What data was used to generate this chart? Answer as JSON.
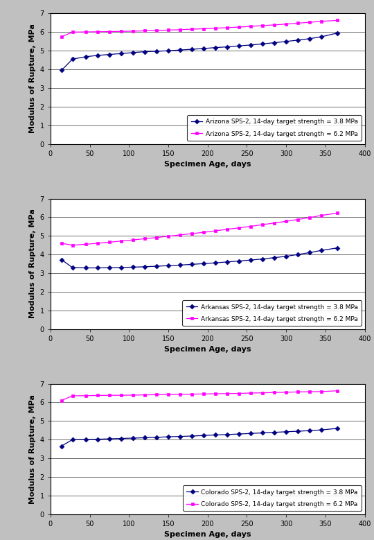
{
  "background_color": "#c0c0c0",
  "panel_bg": "#ffffff",
  "plots": [
    {
      "legend_loc": "lower right",
      "series": [
        {
          "label": "Arizona SPS-2, 14-day target strength = 3.8 MPa",
          "x": [
            14,
            28,
            45,
            60,
            75,
            90,
            105,
            120,
            135,
            150,
            165,
            180,
            195,
            210,
            225,
            240,
            255,
            270,
            285,
            300,
            315,
            330,
            345,
            365
          ],
          "y": [
            3.95,
            4.55,
            4.68,
            4.75,
            4.8,
            4.85,
            4.9,
            4.95,
            4.97,
            5.0,
            5.04,
            5.08,
            5.12,
            5.17,
            5.21,
            5.26,
            5.31,
            5.37,
            5.43,
            5.5,
            5.57,
            5.65,
            5.75,
            5.95
          ],
          "color": "#000080",
          "marker": "D"
        },
        {
          "label": "Arizona SPS-2, 14-day target strength = 6.2 MPa",
          "x": [
            14,
            28,
            45,
            60,
            75,
            90,
            105,
            120,
            135,
            150,
            165,
            180,
            195,
            210,
            225,
            240,
            255,
            270,
            285,
            300,
            315,
            330,
            345,
            365
          ],
          "y": [
            5.75,
            6.0,
            6.01,
            6.02,
            6.03,
            6.04,
            6.05,
            6.07,
            6.09,
            6.11,
            6.13,
            6.16,
            6.18,
            6.21,
            6.24,
            6.27,
            6.31,
            6.35,
            6.39,
            6.43,
            6.48,
            6.53,
            6.58,
            6.63
          ],
          "color": "#ff00ff",
          "marker": "s"
        }
      ]
    },
    {
      "legend_loc": "lower right",
      "series": [
        {
          "label": "Arkansas SPS-2, 14-day target strength = 3.8 MPa",
          "x": [
            14,
            28,
            45,
            60,
            75,
            90,
            105,
            120,
            135,
            150,
            165,
            180,
            195,
            210,
            225,
            240,
            255,
            270,
            285,
            300,
            315,
            330,
            345,
            365
          ],
          "y": [
            3.72,
            3.3,
            3.28,
            3.28,
            3.29,
            3.3,
            3.32,
            3.34,
            3.37,
            3.4,
            3.43,
            3.47,
            3.51,
            3.55,
            3.6,
            3.65,
            3.7,
            3.76,
            3.83,
            3.9,
            4.0,
            4.1,
            4.22,
            4.35
          ],
          "color": "#000080",
          "marker": "D"
        },
        {
          "label": "Arkansas SPS-2, 14-day target strength = 6.2 MPa",
          "x": [
            14,
            28,
            45,
            60,
            75,
            90,
            105,
            120,
            135,
            150,
            165,
            180,
            195,
            210,
            225,
            240,
            255,
            270,
            285,
            300,
            315,
            330,
            345,
            365
          ],
          "y": [
            4.6,
            4.5,
            4.55,
            4.6,
            4.66,
            4.72,
            4.78,
            4.85,
            4.91,
            4.98,
            5.05,
            5.12,
            5.19,
            5.27,
            5.35,
            5.43,
            5.51,
            5.6,
            5.69,
            5.78,
            5.88,
            5.98,
            6.1,
            6.22
          ],
          "color": "#ff00ff",
          "marker": "s"
        }
      ]
    },
    {
      "legend_loc": "lower right",
      "series": [
        {
          "label": "Colorado SPS-2, 14-day target strength = 3.8 MPa",
          "x": [
            14,
            28,
            45,
            60,
            75,
            90,
            105,
            120,
            135,
            150,
            165,
            180,
            195,
            210,
            225,
            240,
            255,
            270,
            285,
            300,
            315,
            330,
            345,
            365
          ],
          "y": [
            3.65,
            4.0,
            4.01,
            4.02,
            4.04,
            4.06,
            4.08,
            4.1,
            4.12,
            4.15,
            4.17,
            4.19,
            4.22,
            4.25,
            4.27,
            4.3,
            4.33,
            4.36,
            4.39,
            4.42,
            4.45,
            4.48,
            4.52,
            4.6
          ],
          "color": "#000080",
          "marker": "D"
        },
        {
          "label": "Colorado SPS-2, 14-day target strength = 6.2 MPa",
          "x": [
            14,
            28,
            45,
            60,
            75,
            90,
            105,
            120,
            135,
            150,
            165,
            180,
            195,
            210,
            225,
            240,
            255,
            270,
            285,
            300,
            315,
            330,
            345,
            365
          ],
          "y": [
            6.1,
            6.35,
            6.36,
            6.37,
            6.38,
            6.38,
            6.39,
            6.4,
            6.41,
            6.42,
            6.43,
            6.44,
            6.45,
            6.46,
            6.47,
            6.48,
            6.5,
            6.51,
            6.53,
            6.54,
            6.56,
            6.57,
            6.58,
            6.62
          ],
          "color": "#ff00ff",
          "marker": "s"
        }
      ]
    }
  ],
  "xlabel": "Specimen Age, days",
  "ylabel": "Modulus of Rupture, MPa",
  "xlim": [
    0,
    400
  ],
  "ylim": [
    0,
    7
  ],
  "xticks": [
    0,
    50,
    100,
    150,
    200,
    250,
    300,
    350,
    400
  ],
  "yticks": [
    0,
    1,
    2,
    3,
    4,
    5,
    6,
    7
  ],
  "tick_fontsize": 7,
  "label_fontsize": 8,
  "legend_fontsize": 6.5
}
